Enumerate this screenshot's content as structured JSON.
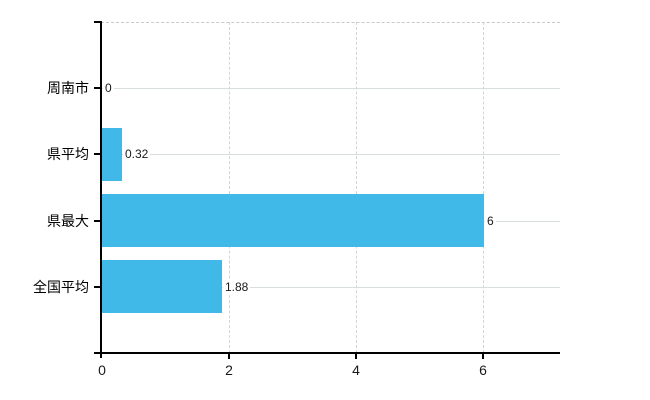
{
  "chart_data": {
    "type": "bar",
    "orientation": "horizontal",
    "title": "",
    "categories": [
      "周南市",
      "県平均",
      "県最大",
      "全国平均"
    ],
    "values": [
      0,
      0.32,
      6,
      1.88
    ],
    "value_labels": [
      "0",
      "0.32",
      "6",
      "1.88"
    ],
    "x_tick_labels": [
      "0",
      "2",
      "4",
      "6"
    ],
    "x_tick_values": [
      0,
      2,
      4,
      6
    ],
    "xlim": [
      0,
      7.2
    ],
    "grid": true,
    "legend": false,
    "colors": {
      "bar": "#41b9e8",
      "axis": "#000000",
      "row_gridline": "#d8ded8",
      "column_gridline": "#d4d4d4",
      "top_border": "#c9c9c9",
      "value_text": "#1a1a1a",
      "category_text": "#000000",
      "background": "#ffffff"
    }
  }
}
